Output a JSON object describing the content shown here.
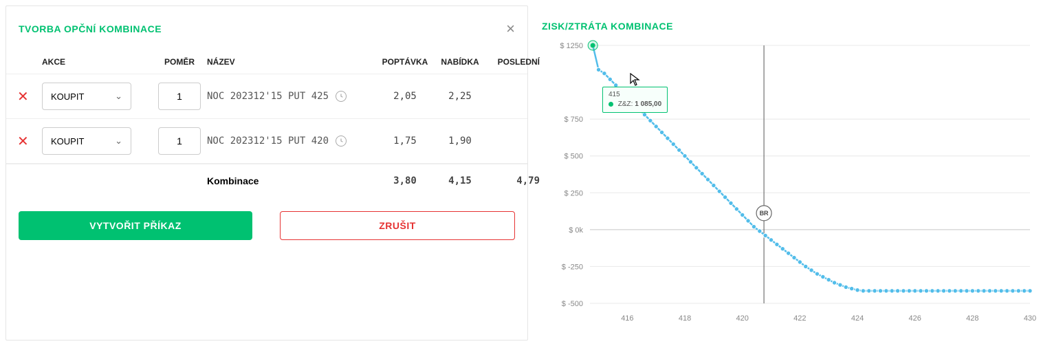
{
  "left_panel": {
    "title": "TVORBA OPČNÍ KOMBINACE",
    "columns": {
      "action": "AKCE",
      "ratio": "POMĚR",
      "name": "NÁZEV",
      "bid": "POPTÁVKA",
      "ask": "NABÍDKA",
      "last": "POSLEDNÍ"
    },
    "rows": [
      {
        "action": "KOUPIT",
        "ratio": "1",
        "name": "NOC 202312'15 PUT 425",
        "bid": "2,05",
        "ask": "2,25",
        "last": ""
      },
      {
        "action": "KOUPIT",
        "ratio": "1",
        "name": "NOC 202312'15 PUT 420",
        "bid": "1,75",
        "ask": "1,90",
        "last": ""
      }
    ],
    "summary": {
      "label": "Kombinace",
      "bid": "3,80",
      "ask": "4,15",
      "last": "4,79"
    },
    "buttons": {
      "create": "VYTVOŘIT PŘÍKAZ",
      "cancel": "ZRUŠIT"
    }
  },
  "right_panel": {
    "title": "ZISK/ZTRÁTA KOMBINACE",
    "chart": {
      "type": "line",
      "y_prefix": "$ ",
      "ylim": [
        -500,
        1250
      ],
      "yticks": [
        -500,
        -250,
        0,
        250,
        500,
        750,
        1250
      ],
      "ytick_zero_label": "0k",
      "xlim": [
        414.7,
        430
      ],
      "xticks": [
        416,
        418,
        420,
        422,
        424,
        426,
        428,
        430
      ],
      "cursor_x": 420.75,
      "br_label": "BR",
      "line_color": "#52bdea",
      "dot_fill": "#52bdea",
      "grid_color": "#e8e8e8",
      "axis_text_color": "#888888",
      "tooltip": {
        "x": "415",
        "label": "Z&Z:",
        "value": "1 085,00"
      },
      "points": [
        {
          "x": 414.8,
          "y": 1250
        },
        {
          "x": 415.0,
          "y": 1085
        },
        {
          "x": 415.2,
          "y": 1060
        },
        {
          "x": 415.4,
          "y": 1020
        },
        {
          "x": 415.6,
          "y": 980
        },
        {
          "x": 415.8,
          "y": 940
        },
        {
          "x": 416.0,
          "y": 900
        },
        {
          "x": 416.2,
          "y": 860
        },
        {
          "x": 416.4,
          "y": 820
        },
        {
          "x": 416.6,
          "y": 780
        },
        {
          "x": 416.8,
          "y": 740
        },
        {
          "x": 417.0,
          "y": 700
        },
        {
          "x": 417.2,
          "y": 660
        },
        {
          "x": 417.4,
          "y": 620
        },
        {
          "x": 417.6,
          "y": 580
        },
        {
          "x": 417.8,
          "y": 540
        },
        {
          "x": 418.0,
          "y": 500
        },
        {
          "x": 418.2,
          "y": 460
        },
        {
          "x": 418.4,
          "y": 420
        },
        {
          "x": 418.6,
          "y": 380
        },
        {
          "x": 418.8,
          "y": 340
        },
        {
          "x": 419.0,
          "y": 300
        },
        {
          "x": 419.2,
          "y": 260
        },
        {
          "x": 419.4,
          "y": 220
        },
        {
          "x": 419.6,
          "y": 180
        },
        {
          "x": 419.8,
          "y": 140
        },
        {
          "x": 420.0,
          "y": 100
        },
        {
          "x": 420.2,
          "y": 60
        },
        {
          "x": 420.4,
          "y": 20
        },
        {
          "x": 420.6,
          "y": -10
        },
        {
          "x": 420.8,
          "y": -40
        },
        {
          "x": 421.0,
          "y": -70
        },
        {
          "x": 421.2,
          "y": -100
        },
        {
          "x": 421.4,
          "y": -130
        },
        {
          "x": 421.6,
          "y": -160
        },
        {
          "x": 421.8,
          "y": -190
        },
        {
          "x": 422.0,
          "y": -220
        },
        {
          "x": 422.2,
          "y": -250
        },
        {
          "x": 422.4,
          "y": -275
        },
        {
          "x": 422.6,
          "y": -300
        },
        {
          "x": 422.8,
          "y": -320
        },
        {
          "x": 423.0,
          "y": -340
        },
        {
          "x": 423.2,
          "y": -360
        },
        {
          "x": 423.4,
          "y": -375
        },
        {
          "x": 423.6,
          "y": -390
        },
        {
          "x": 423.8,
          "y": -400
        },
        {
          "x": 424.0,
          "y": -410
        },
        {
          "x": 424.2,
          "y": -415
        },
        {
          "x": 424.4,
          "y": -415
        },
        {
          "x": 424.6,
          "y": -415
        },
        {
          "x": 424.8,
          "y": -415
        },
        {
          "x": 425.0,
          "y": -415
        },
        {
          "x": 425.2,
          "y": -415
        },
        {
          "x": 425.4,
          "y": -415
        },
        {
          "x": 425.6,
          "y": -415
        },
        {
          "x": 425.8,
          "y": -415
        },
        {
          "x": 426.0,
          "y": -415
        },
        {
          "x": 426.2,
          "y": -415
        },
        {
          "x": 426.4,
          "y": -415
        },
        {
          "x": 426.6,
          "y": -415
        },
        {
          "x": 426.8,
          "y": -415
        },
        {
          "x": 427.0,
          "y": -415
        },
        {
          "x": 427.2,
          "y": -415
        },
        {
          "x": 427.4,
          "y": -415
        },
        {
          "x": 427.6,
          "y": -415
        },
        {
          "x": 427.8,
          "y": -415
        },
        {
          "x": 428.0,
          "y": -415
        },
        {
          "x": 428.2,
          "y": -415
        },
        {
          "x": 428.4,
          "y": -415
        },
        {
          "x": 428.6,
          "y": -415
        },
        {
          "x": 428.8,
          "y": -415
        },
        {
          "x": 429.0,
          "y": -415
        },
        {
          "x": 429.2,
          "y": -415
        },
        {
          "x": 429.4,
          "y": -415
        },
        {
          "x": 429.6,
          "y": -415
        },
        {
          "x": 429.8,
          "y": -415
        },
        {
          "x": 430.0,
          "y": -415
        }
      ]
    }
  }
}
